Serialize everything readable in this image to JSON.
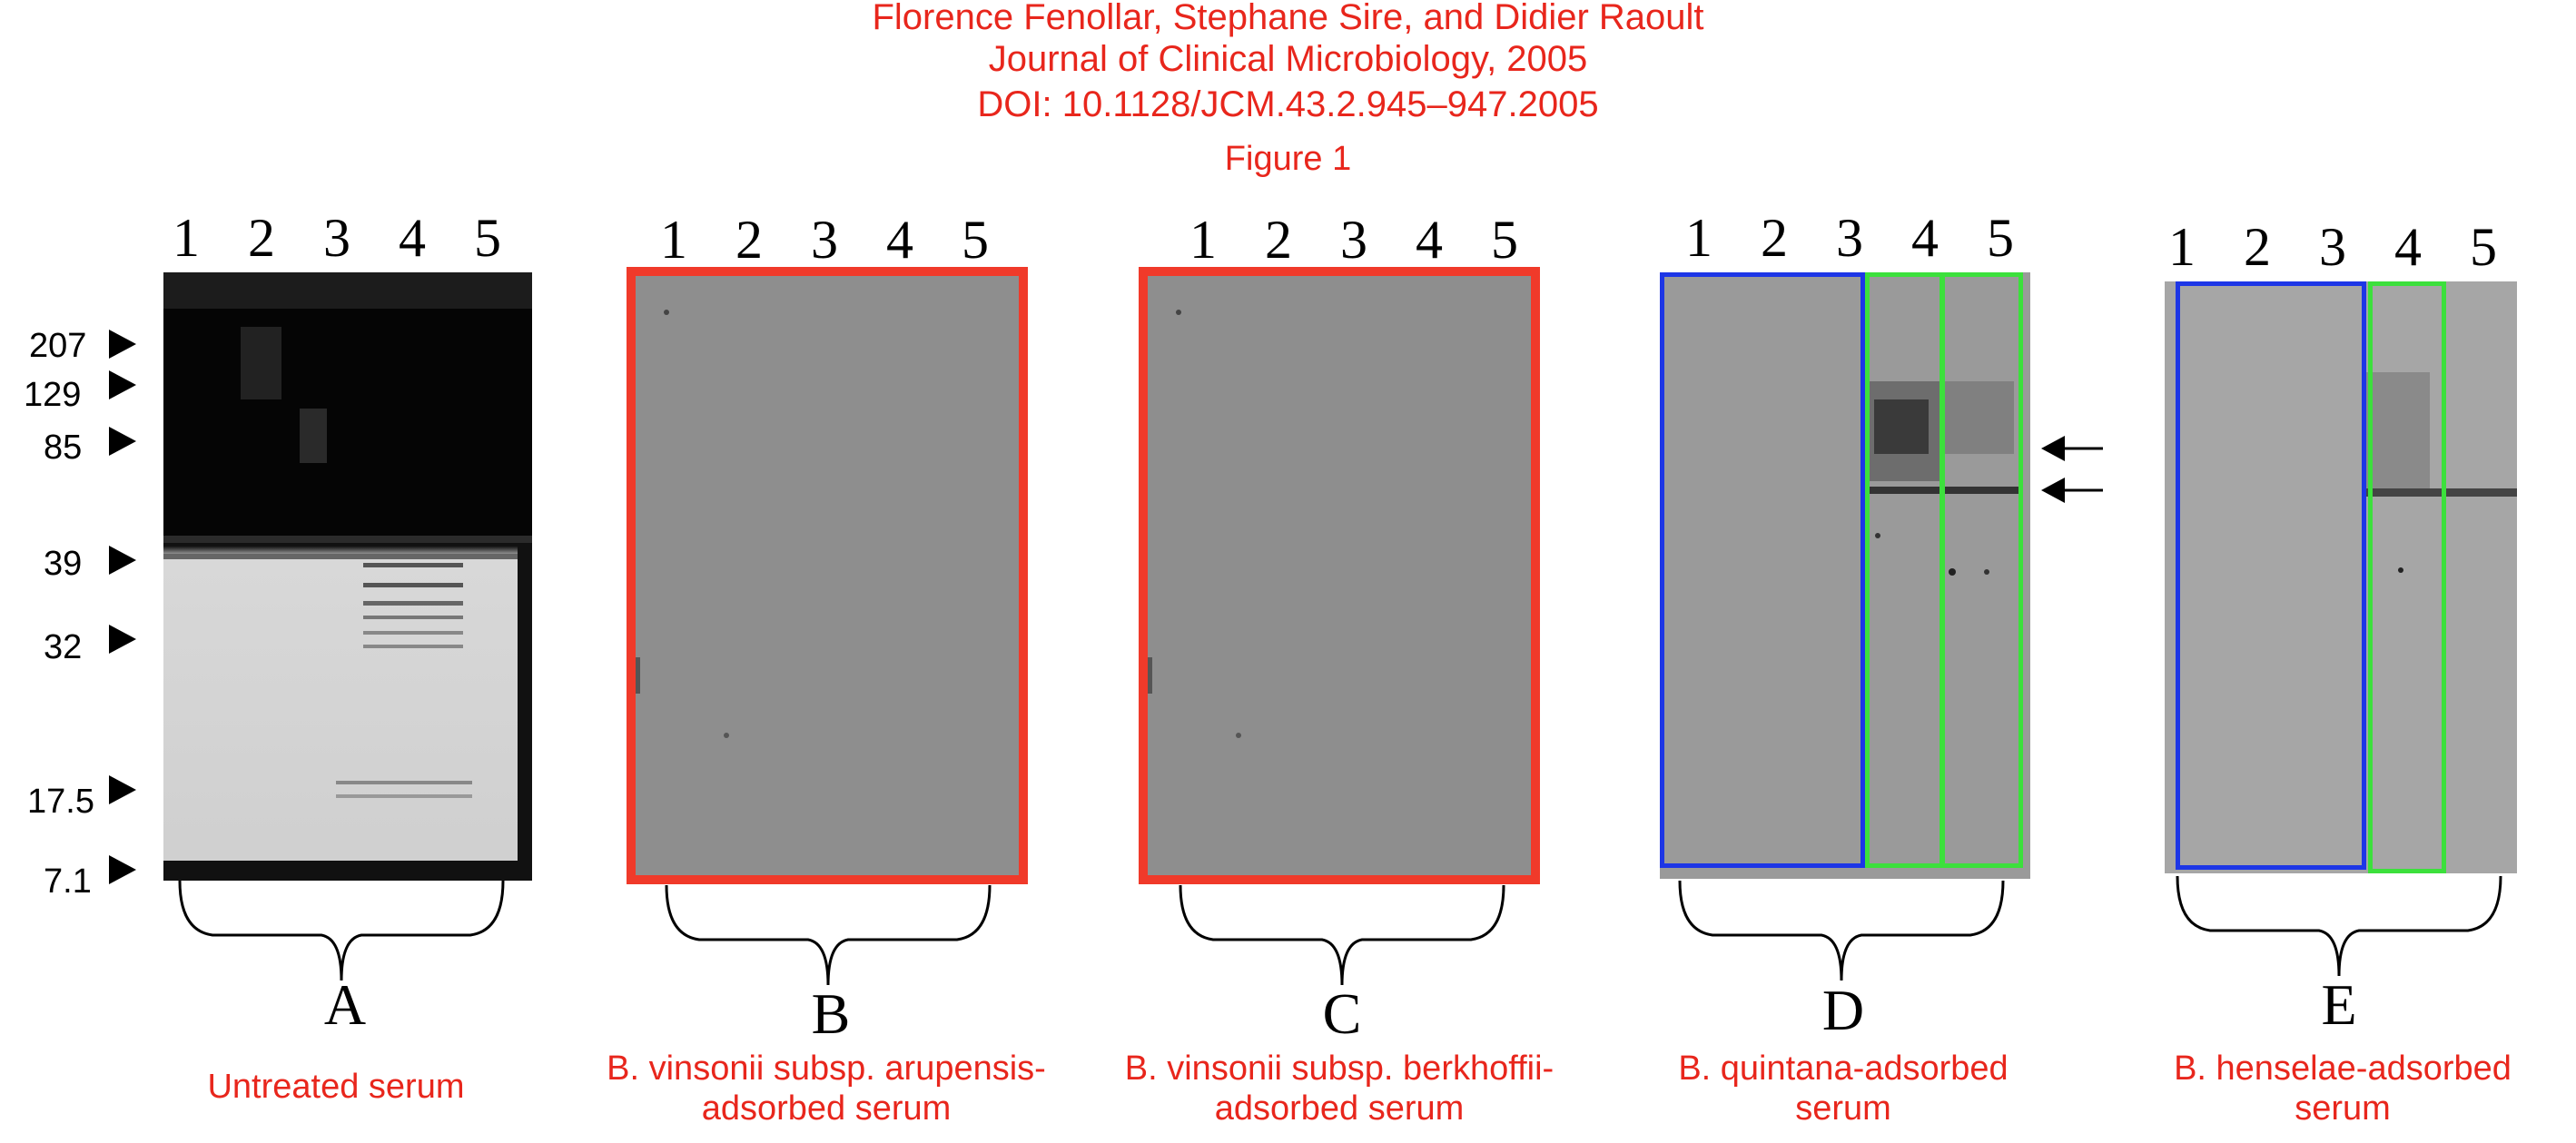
{
  "header": {
    "authors": "Florence Fenollar, Stephane Sire, and Didier Raoult",
    "journal": "Journal of Clinical Microbiology, 2005",
    "doi": "DOI: 10.1128/JCM.43.2.945–947.2005",
    "figure": "Figure 1"
  },
  "lanes": [
    "1",
    "2",
    "3",
    "4",
    "5"
  ],
  "markers": [
    "207",
    "129",
    "85",
    "39",
    "32",
    "17.5",
    "7.1"
  ],
  "panels": [
    {
      "letter": "A",
      "caption_lines": [
        "Untreated serum"
      ]
    },
    {
      "letter": "B",
      "caption_lines": [
        "B. vinsonii subsp. arupensis-",
        "adsorbed serum"
      ]
    },
    {
      "letter": "C",
      "caption_lines": [
        "B. vinsonii subsp. berkhoffii-",
        "adsorbed serum"
      ]
    },
    {
      "letter": "D",
      "caption_lines": [
        "B. quintana-adsorbed",
        "serum"
      ]
    },
    {
      "letter": "E",
      "caption_lines": [
        "B. henselae-adsorbed",
        "serum"
      ]
    }
  ],
  "colors": {
    "caption": "#e8261c",
    "red_box": "#f03a2a",
    "blue_box": "#1d36e6",
    "green_box": "#3ce03c",
    "membrane": "#8e8e8e"
  }
}
